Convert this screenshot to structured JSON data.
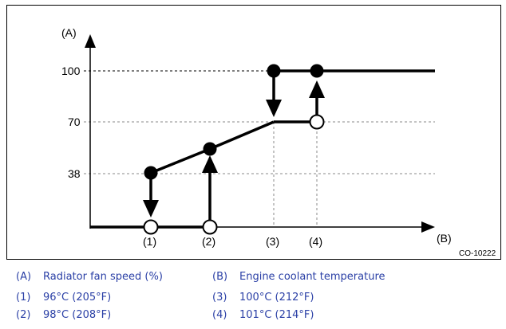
{
  "figure": {
    "y_axis_label": "(A)",
    "x_axis_label": "(B)",
    "y_ticks": [
      "100",
      "70",
      "38"
    ],
    "x_markers": [
      "(1)",
      "(2)",
      "(3)",
      "(4)"
    ],
    "figure_code": "CO-10222"
  },
  "legend": {
    "a_key": "(A)",
    "a_text": "Radiator fan speed (%)",
    "b_key": "(B)",
    "b_text": "Engine coolant temperature",
    "one_key": "(1)",
    "one_text": "96°C (205°F)",
    "two_key": "(2)",
    "two_text": "98°C (208°F)",
    "three_key": "(3)",
    "three_text": "100°C (212°F)",
    "four_key": "(4)",
    "four_text": "101°C (214°F)"
  },
  "colors": {
    "legend_text": "#2b40a6",
    "line": "#000000",
    "grid": "#888888"
  }
}
